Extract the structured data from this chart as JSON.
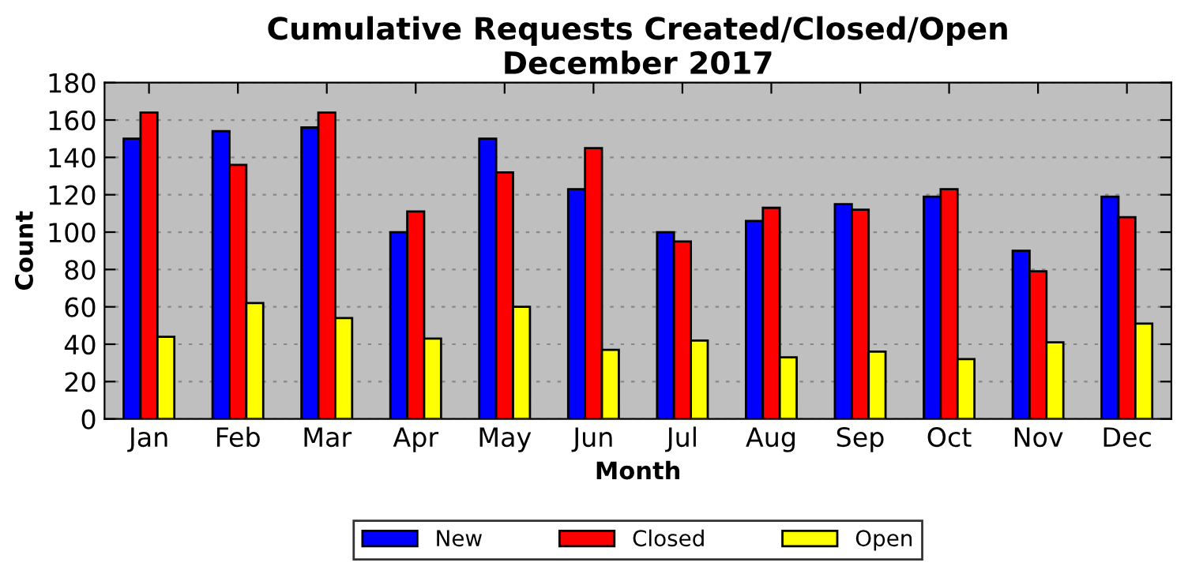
{
  "chart_data": {
    "type": "bar",
    "title": "Cumulative Requests Created/Closed/Open\nDecember 2017",
    "xlabel": "Month",
    "ylabel": "Count",
    "categories": [
      "Jan",
      "Feb",
      "Mar",
      "Apr",
      "May",
      "Jun",
      "Jul",
      "Aug",
      "Sep",
      "Oct",
      "Nov",
      "Dec"
    ],
    "series": [
      {
        "name": "New",
        "color": "#0000ff",
        "values": [
          150,
          154,
          156,
          100,
          150,
          123,
          100,
          106,
          115,
          119,
          90,
          119
        ]
      },
      {
        "name": "Closed",
        "color": "#ff0000",
        "values": [
          164,
          136,
          164,
          111,
          132,
          145,
          95,
          113,
          112,
          123,
          79,
          108
        ]
      },
      {
        "name": "Open",
        "color": "#ffff00",
        "values": [
          44,
          62,
          54,
          43,
          60,
          37,
          42,
          33,
          36,
          32,
          41,
          51
        ]
      }
    ],
    "ylim": [
      0,
      180
    ],
    "yticks": [
      0,
      20,
      40,
      60,
      80,
      100,
      120,
      140,
      160,
      180
    ],
    "grid": "y",
    "legend": "bottom"
  }
}
